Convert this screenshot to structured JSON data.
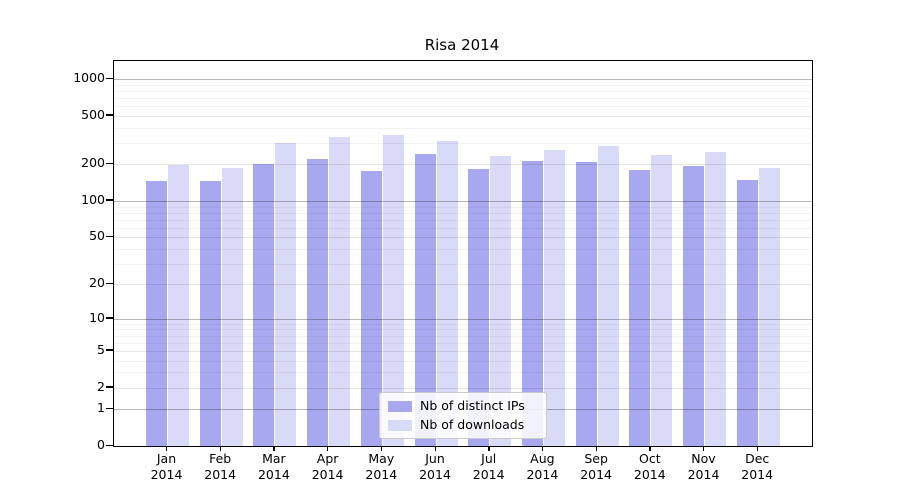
{
  "title": "Risa 2014",
  "year_label": "2014",
  "colors": {
    "ips_bar": "#a8a8f0",
    "downloads_bar": "#d9d9f8",
    "spine": "#000000",
    "legend_border": "#cccccc",
    "background": "#ffffff"
  },
  "chart_data": {
    "type": "bar",
    "title": "Risa 2014",
    "xlabel": "",
    "ylabel": "",
    "yscale": "log1p",
    "ylim": [
      0,
      1400
    ],
    "grid": true,
    "legend_position": "lower center",
    "categories": [
      "Jan 2014",
      "Feb 2014",
      "Mar 2014",
      "Apr 2014",
      "May 2014",
      "Jun 2014",
      "Jul 2014",
      "Aug 2014",
      "Sep 2014",
      "Oct 2014",
      "Nov 2014",
      "Dec 2014"
    ],
    "months": [
      "Jan",
      "Feb",
      "Mar",
      "Apr",
      "May",
      "Jun",
      "Jul",
      "Aug",
      "Sep",
      "Oct",
      "Nov",
      "Dec"
    ],
    "series": [
      {
        "name": "Nb of distinct IPs",
        "color": "#a8a8f0",
        "values": [
          145,
          145,
          200,
          220,
          177,
          243,
          182,
          213,
          211,
          179,
          194,
          149
        ]
      },
      {
        "name": "Nb of downloads",
        "color": "#d9d9f8",
        "values": [
          197,
          188,
          300,
          338,
          352,
          310,
          235,
          262,
          285,
          239,
          254,
          188
        ]
      }
    ],
    "ytick_labels": [
      "0",
      "1",
      "2",
      "5",
      "10",
      "20",
      "50",
      "100",
      "200",
      "500",
      "1000"
    ],
    "yticks": [
      0,
      1,
      2,
      5,
      10,
      20,
      50,
      100,
      200,
      500,
      1000
    ],
    "decade_lines": [
      1,
      10,
      100,
      1000
    ],
    "labeled_lines": [
      2,
      5,
      20,
      50,
      200,
      500
    ],
    "minor_lines": [
      3,
      4,
      6,
      7,
      8,
      9,
      30,
      40,
      60,
      70,
      80,
      90,
      300,
      400,
      600,
      700,
      800,
      900
    ]
  }
}
